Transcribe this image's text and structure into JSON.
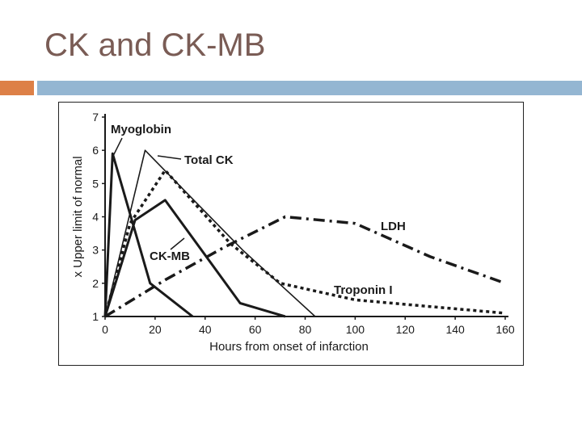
{
  "slide": {
    "title": "CK and CK-MB"
  },
  "chart_data": {
    "type": "line",
    "title": "",
    "xlabel": "Hours from onset of infarction",
    "ylabel": "x Upper limit of normal",
    "xlim": [
      0,
      160
    ],
    "ylim": [
      1,
      7
    ],
    "xticks": [
      0,
      20,
      40,
      60,
      80,
      100,
      120,
      140,
      160
    ],
    "yticks": [
      1,
      2,
      3,
      4,
      5,
      6,
      7
    ],
    "grid": false,
    "legend": "none (series labeled directly on plot)",
    "series": [
      {
        "name": "Myoglobin",
        "style": "solid-thick",
        "color": "#1a1a1a",
        "x": [
          0,
          3,
          18,
          35
        ],
        "y": [
          1,
          5.9,
          2,
          1
        ]
      },
      {
        "name": "Total CK",
        "style": "solid-thin",
        "color": "#1a1a1a",
        "x": [
          0,
          16,
          55,
          84
        ],
        "y": [
          1,
          6,
          3,
          1
        ]
      },
      {
        "name": "CK-MB",
        "style": "solid-thick",
        "color": "#1a1a1a",
        "x": [
          0,
          12,
          24,
          54,
          72
        ],
        "y": [
          1,
          3.9,
          4.5,
          1.4,
          1
        ]
      },
      {
        "name": "Troponin I",
        "style": "dotted",
        "color": "#1a1a1a",
        "x": [
          0,
          10,
          24,
          50,
          70,
          100,
          130,
          160
        ],
        "y": [
          1,
          3.8,
          5.4,
          3.2,
          2,
          1.5,
          1.3,
          1.1
        ]
      },
      {
        "name": "LDH",
        "style": "dash-dot",
        "color": "#1a1a1a",
        "x": [
          0,
          24,
          48,
          72,
          100,
          130,
          160
        ],
        "y": [
          1,
          2.1,
          3.1,
          4,
          3.8,
          2.8,
          2
        ]
      }
    ],
    "annotations": [
      "Myoglobin",
      "Total CK",
      "CK-MB",
      "LDH",
      "Troponin I"
    ]
  }
}
